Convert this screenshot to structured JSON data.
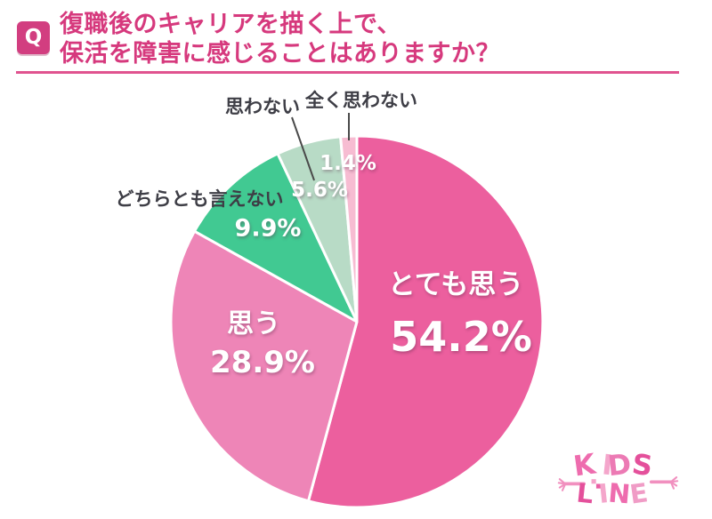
{
  "header": {
    "badge_label": "Q",
    "title_line1": "復職後のキャリアを描く上で、",
    "title_line2": "保活を障害に感じることはありますか？",
    "accent_color": "#d6397d"
  },
  "chart_data": {
    "type": "pie",
    "title": "復職後のキャリアを描く上で、保活を障害に感じることはありますか？",
    "categories": [
      "とても思う",
      "思う",
      "どちらとも言えない",
      "思わない",
      "全く思わない"
    ],
    "values": [
      54.2,
      28.9,
      9.9,
      5.6,
      1.4
    ],
    "display_values": [
      "54.2%",
      "28.9%",
      "9.9%",
      "5.6%",
      "1.4%"
    ],
    "unit": "%",
    "colors": [
      "#ec5f9e",
      "#ee85b7",
      "#41c992",
      "#b8dbc6",
      "#f7bcd2"
    ],
    "start_angle_deg": 0,
    "direction": "clockwise",
    "slice_border_color": "#ffffff",
    "legend": "none",
    "label_placement": "large slices labeled inside in white; small slices labeled outside in dark gray with leader lines"
  },
  "logo": {
    "line1": "KIDS",
    "line2": "LINE",
    "color": "#ee79b3"
  }
}
